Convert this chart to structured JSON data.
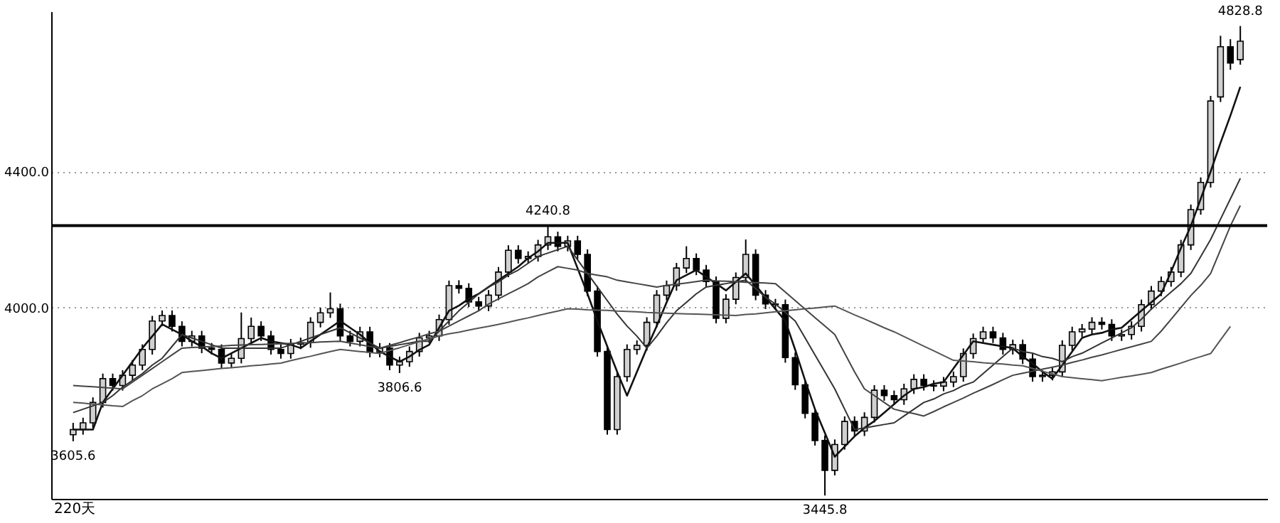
{
  "chart_data": {
    "type": "candlestick",
    "ohlc": [
      [
        3625,
        3660,
        3605.6,
        3640
      ],
      [
        3640,
        3675,
        3625,
        3660
      ],
      [
        3660,
        3735,
        3645,
        3720
      ],
      [
        3720,
        3805,
        3705,
        3790
      ],
      [
        3790,
        3805,
        3755,
        3770
      ],
      [
        3770,
        3815,
        3755,
        3800
      ],
      [
        3800,
        3845,
        3785,
        3830
      ],
      [
        3830,
        3891,
        3815,
        3876
      ],
      [
        3876,
        3975,
        3861,
        3960
      ],
      [
        3960,
        3991,
        3945,
        3976
      ],
      [
        3976,
        3991,
        3929,
        3944
      ],
      [
        3944,
        3959,
        3885,
        3900
      ],
      [
        3900,
        3931,
        3885,
        3916
      ],
      [
        3916,
        3931,
        3865,
        3880
      ],
      [
        3880,
        3895,
        3861,
        3876
      ],
      [
        3876,
        3891,
        3821,
        3836
      ],
      [
        3836,
        3865,
        3821,
        3850
      ],
      [
        3850,
        3985,
        3835,
        3908
      ],
      [
        3908,
        3970,
        3893,
        3944
      ],
      [
        3944,
        3959,
        3901,
        3916
      ],
      [
        3916,
        3931,
        3861,
        3876
      ],
      [
        3876,
        3891,
        3849,
        3864
      ],
      [
        3864,
        3907,
        3849,
        3892
      ],
      [
        3892,
        3911,
        3877,
        3896
      ],
      [
        3896,
        3971,
        3881,
        3956
      ],
      [
        3956,
        3999,
        3941,
        3984
      ],
      [
        3984,
        4044,
        3969,
        3996
      ],
      [
        3996,
        4011,
        3901,
        3916
      ],
      [
        3916,
        3931,
        3885,
        3900
      ],
      [
        3900,
        3943,
        3885,
        3928
      ],
      [
        3928,
        3943,
        3853,
        3868
      ],
      [
        3868,
        3895,
        3853,
        3880
      ],
      [
        3880,
        3895,
        3815,
        3830
      ],
      [
        3830,
        3855,
        3806.6,
        3840
      ],
      [
        3840,
        3885,
        3825,
        3870
      ],
      [
        3870,
        3925,
        3855,
        3910
      ],
      [
        3910,
        3931,
        3895,
        3916
      ],
      [
        3916,
        3979,
        3901,
        3964
      ],
      [
        3964,
        4079,
        3949,
        4064
      ],
      [
        4064,
        4080,
        4041,
        4056
      ],
      [
        4056,
        4071,
        4001,
        4016
      ],
      [
        4016,
        4031,
        3989,
        4004
      ],
      [
        4004,
        4051,
        3989,
        4036
      ],
      [
        4036,
        4119,
        4021,
        4104
      ],
      [
        4104,
        4183,
        4089,
        4168
      ],
      [
        4168,
        4183,
        4129,
        4144
      ],
      [
        4144,
        4165,
        4129,
        4150
      ],
      [
        4150,
        4199,
        4135,
        4184
      ],
      [
        4184,
        4240.8,
        4169,
        4208
      ],
      [
        4208,
        4223,
        4165,
        4180
      ],
      [
        4180,
        4211,
        4165,
        4196
      ],
      [
        4196,
        4211,
        4141,
        4156
      ],
      [
        4156,
        4171,
        4033,
        4048
      ],
      [
        4048,
        4063,
        3855,
        3870
      ],
      [
        3870,
        3885,
        3625,
        3640
      ],
      [
        3640,
        3811,
        3625,
        3796
      ],
      [
        3796,
        3891,
        3781,
        3876
      ],
      [
        3876,
        3903,
        3861,
        3888
      ],
      [
        3888,
        3971,
        3873,
        3956
      ],
      [
        3956,
        4051,
        3941,
        4036
      ],
      [
        4036,
        4079,
        4021,
        4064
      ],
      [
        4064,
        4131,
        4049,
        4116
      ],
      [
        4116,
        4180,
        4101,
        4144
      ],
      [
        4144,
        4159,
        4095,
        4110
      ],
      [
        4110,
        4125,
        4061,
        4076
      ],
      [
        4076,
        4091,
        3953,
        3968
      ],
      [
        3968,
        4039,
        3953,
        4024
      ],
      [
        4024,
        4103,
        4009,
        4088
      ],
      [
        4088,
        4200,
        4073,
        4156
      ],
      [
        4156,
        4171,
        4021,
        4036
      ],
      [
        4036,
        4051,
        3995,
        4010
      ],
      [
        4010,
        4025,
        3993,
        4008
      ],
      [
        4008,
        4023,
        3837,
        3852
      ],
      [
        3852,
        3867,
        3757,
        3772
      ],
      [
        3772,
        3787,
        3673,
        3688
      ],
      [
        3688,
        3703,
        3593,
        3608
      ],
      [
        3608,
        3623,
        3445.8,
        3520
      ],
      [
        3520,
        3611,
        3505,
        3596
      ],
      [
        3596,
        3679,
        3581,
        3664
      ],
      [
        3664,
        3679,
        3621,
        3636
      ],
      [
        3636,
        3691,
        3621,
        3676
      ],
      [
        3676,
        3771,
        3661,
        3756
      ],
      [
        3756,
        3771,
        3725,
        3740
      ],
      [
        3740,
        3755,
        3713,
        3728
      ],
      [
        3728,
        3775,
        3713,
        3760
      ],
      [
        3760,
        3803,
        3745,
        3788
      ],
      [
        3788,
        3803,
        3755,
        3770
      ],
      [
        3770,
        3785,
        3753,
        3768
      ],
      [
        3768,
        3795,
        3753,
        3780
      ],
      [
        3780,
        3811,
        3765,
        3796
      ],
      [
        3796,
        3879,
        3781,
        3864
      ],
      [
        3864,
        3923,
        3849,
        3908
      ],
      [
        3908,
        3943,
        3893,
        3928
      ],
      [
        3928,
        3943,
        3895,
        3910
      ],
      [
        3910,
        3925,
        3861,
        3876
      ],
      [
        3876,
        3905,
        3861,
        3890
      ],
      [
        3890,
        3905,
        3833,
        3848
      ],
      [
        3848,
        3863,
        3781,
        3796
      ],
      [
        3796,
        3815,
        3781,
        3800
      ],
      [
        3800,
        3825,
        3785,
        3810
      ],
      [
        3810,
        3903,
        3795,
        3888
      ],
      [
        3888,
        3943,
        3873,
        3928
      ],
      [
        3928,
        3951,
        3913,
        3936
      ],
      [
        3936,
        3971,
        3921,
        3956
      ],
      [
        3956,
        3971,
        3935,
        3950
      ],
      [
        3950,
        3965,
        3901,
        3916
      ],
      [
        3916,
        3935,
        3901,
        3920
      ],
      [
        3920,
        3959,
        3905,
        3944
      ],
      [
        3944,
        4023,
        3929,
        4008
      ],
      [
        4008,
        4063,
        3993,
        4048
      ],
      [
        4048,
        4091,
        4033,
        4076
      ],
      [
        4076,
        4119,
        4061,
        4104
      ],
      [
        4104,
        4199,
        4089,
        4184
      ],
      [
        4184,
        4303,
        4169,
        4288
      ],
      [
        4288,
        4383,
        4273,
        4368
      ],
      [
        4368,
        4623,
        4353,
        4608
      ],
      [
        4620,
        4800,
        4605,
        4768
      ],
      [
        4768,
        4790,
        4700,
        4720
      ],
      [
        4730,
        4828.8,
        4715,
        4784
      ]
    ],
    "series": [
      {
        "type": "line",
        "color": "#111111",
        "values": [
          3640,
          3640,
          3640,
          3720,
          3760,
          3800,
          3840,
          3880,
          3915,
          3950,
          3935,
          3920,
          3900,
          3885,
          3865,
          3850,
          3865,
          3880,
          3895,
          3910,
          3900,
          3895,
          3890,
          3880,
          3900,
          3920,
          3940,
          3960,
          3940,
          3920,
          3895,
          3870,
          3855,
          3840,
          3855,
          3875,
          3890,
          3940,
          3990,
          4005,
          4025,
          4040,
          4060,
          4080,
          4100,
          4120,
          4145,
          4165,
          4190,
          4190,
          4190,
          4115,
          4040,
          3960,
          3885,
          3810,
          3740,
          3810,
          3880,
          3945,
          4015,
          4080,
          4095,
          4110,
          4090,
          4070,
          4050,
          4075,
          4100,
          4065,
          4030,
          3995,
          3960,
          3875,
          3785,
          3700,
          3630,
          3560,
          3590,
          3620,
          3645,
          3665,
          3690,
          3715,
          3740,
          3760,
          3765,
          3775,
          3780,
          3820,
          3860,
          3900,
          3895,
          3890,
          3885,
          3880,
          3855,
          3835,
          3810,
          3790,
          3830,
          3870,
          3910,
          3920,
          3925,
          3935,
          3940,
          3965,
          3990,
          4015,
          4040,
          4105,
          4175,
          4240,
          4320,
          4400,
          4485,
          4565,
          4650
        ]
      },
      {
        "type": "line",
        "color": "#333333",
        "values": [
          3690,
          3700,
          3710,
          3720,
          3740,
          3765,
          3785,
          3805,
          3830,
          3850,
          3885,
          3920,
          3910,
          3900,
          3890,
          3880,
          3880,
          3880,
          3880,
          3880,
          3880,
          3880,
          3890,
          3900,
          3910,
          3920,
          3930,
          3940,
          3925,
          3910,
          3895,
          3880,
          3885,
          3890,
          3895,
          3900,
          3900,
          3930,
          3960,
          3990,
          4015,
          4040,
          4060,
          4075,
          4095,
          4110,
          4130,
          4150,
          4160,
          4170,
          4180,
          4140,
          4100,
          4060,
          4020,
          3980,
          3945,
          3915,
          3880,
          3915,
          3955,
          3990,
          4015,
          4040,
          4060,
          4065,
          4070,
          4075,
          4080,
          4055,
          4030,
          4010,
          3985,
          3960,
          3910,
          3860,
          3810,
          3760,
          3700,
          3640,
          3645,
          3650,
          3655,
          3660,
          3680,
          3700,
          3720,
          3730,
          3745,
          3755,
          3770,
          3780,
          3805,
          3830,
          3855,
          3880,
          3870,
          3865,
          3855,
          3850,
          3840,
          3855,
          3865,
          3880,
          3895,
          3910,
          3925,
          3940,
          3965,
          3995,
          4020,
          4045,
          4070,
          4100,
          4150,
          4200,
          4260,
          4320,
          4380
        ]
      },
      {
        "type": "line",
        "color": "#444444",
        "values": [
          3770,
          3768,
          3766,
          3764,
          3762,
          3760,
          3780,
          3800,
          3820,
          3840,
          3860,
          3880,
          3882,
          3883,
          3885,
          3886,
          3888,
          3889,
          3890,
          3891,
          3892,
          3893,
          3894,
          3895,
          3896,
          3898,
          3899,
          3900,
          3895,
          3890,
          3885,
          3880,
          3888,
          3896,
          3905,
          3913,
          3922,
          3930,
          3945,
          3960,
          3975,
          3990,
          4010,
          4025,
          4040,
          4055,
          4070,
          4090,
          4105,
          4120,
          4115,
          4110,
          4100,
          4095,
          4090,
          4080,
          4075,
          4070,
          4065,
          4060,
          4065,
          4068,
          4072,
          4076,
          4080,
          4078,
          4077,
          4076,
          4074,
          4073,
          4072,
          4070,
          4045,
          4020,
          3995,
          3970,
          3945,
          3920,
          3865,
          3810,
          3760,
          3740,
          3720,
          3700,
          3693,
          3687,
          3680,
          3693,
          3707,
          3720,
          3733,
          3747,
          3760,
          3773,
          3787,
          3800,
          3806,
          3812,
          3818,
          3824,
          3830,
          3838,
          3845,
          3853,
          3860,
          3868,
          3876,
          3884,
          3892,
          3900,
          3930,
          3965,
          4000,
          4035,
          4065,
          4100,
          4170,
          4240,
          4300
        ]
      },
      {
        "type": "line",
        "color": "#555555",
        "values": [
          3720,
          3718,
          3715,
          3713,
          3710,
          3708,
          3725,
          3740,
          3760,
          3775,
          3790,
          3808,
          3811,
          3814,
          3817,
          3820,
          3822,
          3825,
          3828,
          3830,
          3833,
          3836,
          3843,
          3850,
          3856,
          3863,
          3870,
          3876,
          3873,
          3870,
          3867,
          3864,
          3873,
          3881,
          3890,
          3899,
          3907,
          3916,
          3922,
          3927,
          3933,
          3939,
          3944,
          3950,
          3956,
          3963,
          3969,
          3976,
          3983,
          3989,
          3996,
          3995,
          3993,
          3992,
          3991,
          3989,
          3988,
          3987,
          3985,
          3984,
          3983,
          3982,
          3981,
          3980,
          3979,
          3978,
          3977,
          3976,
          3979,
          3981,
          3984,
          3987,
          3990,
          3993,
          3996,
          3998,
          4001,
          4004,
          3991,
          3978,
          3966,
          3953,
          3940,
          3928,
          3914,
          3900,
          3886,
          3872,
          3858,
          3844,
          3842,
          3840,
          3837,
          3835,
          3833,
          3830,
          3828,
          3820,
          3812,
          3804,
          3796,
          3793,
          3790,
          3787,
          3784,
          3789,
          3794,
          3798,
          3803,
          3808,
          3818,
          3827,
          3836,
          3846,
          3855,
          3864,
          3904,
          3944
        ]
      }
    ],
    "ylim": [
      3436,
      4872
    ],
    "yticks": [
      {
        "value": 4000,
        "label": "4000.0"
      },
      {
        "value": 4400,
        "label": "4400.0"
      }
    ],
    "grid": "y",
    "tick_labels": "y",
    "marker": "none",
    "ref_lines": [
      {
        "axis": "y",
        "value": 4240.8,
        "color": "#000000"
      }
    ],
    "annotations": [
      {
        "text": "4240.8",
        "y": 4240.8
      },
      {
        "text": "3605.6",
        "y": 3605.6
      },
      {
        "text": "3806.6",
        "y": 3806.6
      },
      {
        "text": "3445.8",
        "y": 3445.8
      },
      {
        "text": "4828.8",
        "y": 4828.8
      },
      "220天"
    ]
  }
}
